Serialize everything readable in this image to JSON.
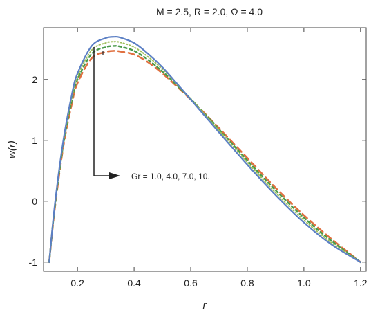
{
  "chart_data": {
    "type": "line",
    "title": "M = 2.5, R = 2.0, Ω = 4.0",
    "xlabel": "r",
    "ylabel": "w(r)",
    "xlim": [
      0.08,
      1.22
    ],
    "ylim": [
      -1.15,
      2.85
    ],
    "xticks": [
      0.2,
      0.4,
      0.6,
      0.8,
      1.0,
      1.2
    ],
    "xtick_labels": [
      "0.2",
      "0.4",
      "0.6",
      "0.8",
      "1.0",
      "1.2"
    ],
    "yticks": [
      -1,
      0,
      1,
      2
    ],
    "ytick_labels": [
      "-1",
      "0",
      "1",
      "2"
    ],
    "grid": false,
    "annotation": "Gr = 1.0, 4.0, 7.0, 10.",
    "series": [
      {
        "style": "solid",
        "color": "#5b7fc4",
        "x": [
          0.1,
          0.12,
          0.15,
          0.18,
          0.2,
          0.25,
          0.3,
          0.33,
          0.35,
          0.4,
          0.45,
          0.5,
          0.55,
          0.6,
          0.65,
          0.7,
          0.8,
          0.9,
          1.0,
          1.1,
          1.2
        ],
        "y": [
          -1.0,
          -0.05,
          1.0,
          1.75,
          2.1,
          2.55,
          2.68,
          2.7,
          2.69,
          2.6,
          2.42,
          2.2,
          1.94,
          1.67,
          1.4,
          1.13,
          0.6,
          0.1,
          -0.35,
          -0.72,
          -1.0
        ]
      },
      {
        "style": "dotted",
        "color": "#9fbf5a",
        "x": [
          0.1,
          0.12,
          0.15,
          0.18,
          0.2,
          0.25,
          0.3,
          0.33,
          0.35,
          0.4,
          0.45,
          0.5,
          0.55,
          0.6,
          0.65,
          0.7,
          0.8,
          0.9,
          1.0,
          1.1,
          1.2
        ],
        "y": [
          -1.0,
          -0.07,
          0.97,
          1.7,
          2.05,
          2.48,
          2.6,
          2.62,
          2.61,
          2.53,
          2.37,
          2.17,
          1.93,
          1.68,
          1.42,
          1.16,
          0.64,
          0.14,
          -0.31,
          -0.69,
          -1.0
        ]
      },
      {
        "style": "dashed-short",
        "color": "#4a9a4a",
        "x": [
          0.1,
          0.12,
          0.15,
          0.18,
          0.2,
          0.25,
          0.3,
          0.33,
          0.35,
          0.4,
          0.45,
          0.5,
          0.55,
          0.6,
          0.65,
          0.7,
          0.8,
          0.9,
          1.0,
          1.1,
          1.2
        ],
        "y": [
          -1.0,
          -0.09,
          0.94,
          1.66,
          2.0,
          2.42,
          2.53,
          2.55,
          2.54,
          2.47,
          2.32,
          2.13,
          1.91,
          1.68,
          1.43,
          1.18,
          0.67,
          0.18,
          -0.27,
          -0.66,
          -1.0
        ]
      },
      {
        "style": "dashed-long",
        "color": "#e07040",
        "x": [
          0.1,
          0.12,
          0.15,
          0.18,
          0.2,
          0.25,
          0.3,
          0.33,
          0.35,
          0.4,
          0.45,
          0.5,
          0.55,
          0.6,
          0.65,
          0.7,
          0.8,
          0.9,
          1.0,
          1.1,
          1.2
        ],
        "y": [
          -1.0,
          -0.11,
          0.9,
          1.6,
          1.94,
          2.35,
          2.45,
          2.47,
          2.46,
          2.41,
          2.28,
          2.1,
          1.89,
          1.67,
          1.44,
          1.2,
          0.71,
          0.22,
          -0.23,
          -0.63,
          -1.0
        ]
      }
    ]
  }
}
